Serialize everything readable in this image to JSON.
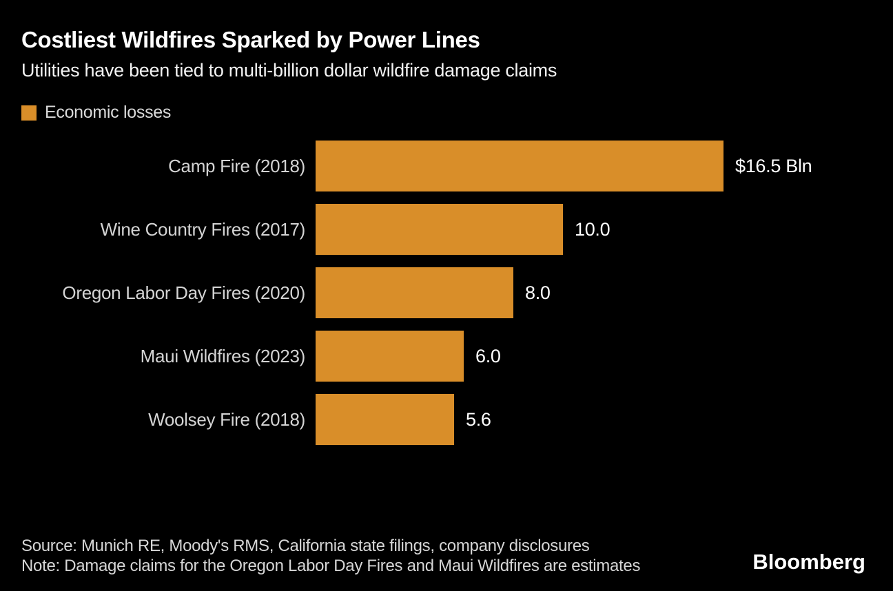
{
  "chart": {
    "title": "Costliest Wildfires Sparked by Power Lines",
    "subtitle": "Utilities have been tied to multi-billion dollar wildfire damage claims",
    "legend": {
      "label": "Economic losses"
    }
  },
  "chart_data": {
    "type": "bar",
    "orientation": "horizontal",
    "title": "Costliest Wildfires Sparked by Power Lines",
    "subtitle": "Utilities have been tied to multi-billion dollar wildfire damage claims",
    "legend_entries": [
      "Economic losses"
    ],
    "legend_position": "top-left",
    "categories": [
      "Camp Fire (2018)",
      "Wine Country Fires (2017)",
      "Oregon Labor Day Fires (2020)",
      "Maui Wildfires (2023)",
      "Woolsey Fire (2018)"
    ],
    "values": [
      16.5,
      10.0,
      8.0,
      6.0,
      5.6
    ],
    "value_labels": [
      "$16.5 Bln",
      "10.0",
      "8.0",
      "6.0",
      "5.6"
    ],
    "unit": "Bln",
    "xlim": [
      0,
      16.5
    ],
    "grid": false,
    "axes_visible": false
  },
  "footer": {
    "source": "Source: Munich RE, Moody's RMS, California state filings, company disclosures",
    "note": "Note: Damage claims for the Oregon Labor Day Fires and Maui Wildfires are estimates",
    "brand": "Bloomberg"
  },
  "colors": {
    "background": "#000000",
    "bar": "#d98e29",
    "title_text": "#ffffff",
    "value_text": "#ffffff",
    "muted_text": "#d4d4d4"
  }
}
